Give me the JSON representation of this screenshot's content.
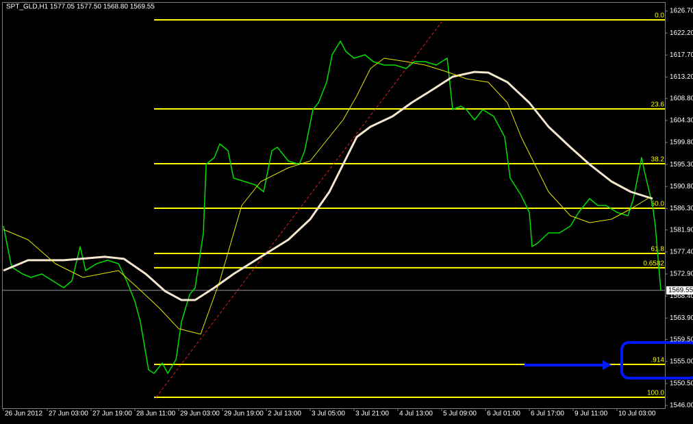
{
  "chart_data": {
    "type": "line",
    "title": "SPT_GLD,H1  1577.05 1577.50 1568.80 1569.55",
    "xlim": [
      -0.5,
      241.5
    ],
    "xticks": [
      {
        "value": 0,
        "label": "26 Jun 2012"
      },
      {
        "value": 16,
        "label": "27 Jun 03:00"
      },
      {
        "value": 32,
        "label": "27 Jun 19:00"
      },
      {
        "value": 48,
        "label": "28 Jun 11:00"
      },
      {
        "value": 64,
        "label": "29 Jun 03:00"
      },
      {
        "value": 80,
        "label": "29 Jun 19:00"
      },
      {
        "value": 96,
        "label": "2 Jul 13:00"
      },
      {
        "value": 112,
        "label": "3 Jul 05:00"
      },
      {
        "value": 128,
        "label": "3 Jul 21:00"
      },
      {
        "value": 144,
        "label": "4 Jul 13:00"
      },
      {
        "value": 160,
        "label": "5 Jul 09:00"
      },
      {
        "value": 176,
        "label": "6 Jul 01:00"
      },
      {
        "value": 192,
        "label": "6 Jul 17:00"
      },
      {
        "value": 208,
        "label": "9 Jul 11:00"
      },
      {
        "value": 224,
        "label": "10 Jul 03:00"
      }
    ],
    "ylim": [
      1545.44,
      1628.38
    ],
    "yticks": [
      {
        "value": 1626.7,
        "label": "1626.70"
      },
      {
        "value": 1622.2,
        "label": "1622.20"
      },
      {
        "value": 1617.7,
        "label": "1617.70"
      },
      {
        "value": 1613.2,
        "label": "1613.20"
      },
      {
        "value": 1608.8,
        "label": "1608.80"
      },
      {
        "value": 1604.3,
        "label": "1604.30"
      },
      {
        "value": 1599.8,
        "label": "1599.80"
      },
      {
        "value": 1595.3,
        "label": "1595.30"
      },
      {
        "value": 1590.8,
        "label": "1590.80"
      },
      {
        "value": 1586.3,
        "label": "1586.30"
      },
      {
        "value": 1581.9,
        "label": "1581.90"
      },
      {
        "value": 1577.4,
        "label": "1577.40"
      },
      {
        "value": 1572.9,
        "label": "1572.90"
      },
      {
        "value": 1568.4,
        "label": "1568.40"
      },
      {
        "value": 1563.9,
        "label": "1563.90"
      },
      {
        "value": 1559.5,
        "label": "1559.50"
      },
      {
        "value": 1555,
        "label": "1555.00"
      },
      {
        "value": 1550.5,
        "label": "1550.50"
      },
      {
        "value": 1546,
        "label": "1546.00"
      }
    ],
    "last_price": {
      "value": 1569.55,
      "label": "1569.55"
    },
    "fib_color": "#ffff00",
    "levels": [
      {
        "value": 1624.88,
        "label": "0.0"
      },
      {
        "value": 1606.67,
        "label": "23.6"
      },
      {
        "value": 1595.46,
        "label": "38.2"
      },
      {
        "value": 1586.35,
        "label": "50.0"
      },
      {
        "value": 1577.11,
        "label": "61.8"
      },
      {
        "value": 1574.17,
        "label": "0.6582"
      },
      {
        "value": 1554.41,
        "label": ".914"
      },
      {
        "value": 1547.69,
        "label": "100.0"
      }
    ],
    "series": [
      {
        "color": "#00e000",
        "width": 1.5,
        "x": [
          0,
          3,
          7,
          10,
          14,
          18,
          22,
          25,
          28,
          30,
          34,
          38,
          42,
          45,
          48,
          50,
          53,
          55,
          58,
          60,
          63,
          65,
          68,
          70,
          73,
          74,
          77,
          79,
          82,
          84,
          88,
          92,
          95,
          98,
          100,
          104,
          108,
          110,
          113,
          115,
          118,
          120,
          123,
          125,
          128,
          132,
          135,
          139,
          143,
          147,
          150,
          154,
          158,
          162,
          164,
          167,
          169,
          172,
          175,
          179,
          183,
          185,
          189,
          192,
          193,
          195,
          199,
          203,
          207,
          210,
          214,
          217,
          220,
          224,
          228,
          230,
          233,
          234,
          237,
          238,
          240
        ],
        "values": [
          1582.71,
          1574.3,
          1572.9,
          1572.2,
          1572.9,
          1571.5,
          1570.1,
          1571.5,
          1578.51,
          1573.6,
          1575.0,
          1575.71,
          1575.0,
          1571.5,
          1567.3,
          1563.1,
          1553.29,
          1552.59,
          1554.69,
          1552.59,
          1555.39,
          1563.1,
          1568.7,
          1570.1,
          1581.31,
          1595.32,
          1596.72,
          1599.52,
          1598.12,
          1592.52,
          1591.82,
          1591.12,
          1589.71,
          1598.12,
          1598.82,
          1596.02,
          1595.32,
          1598.12,
          1606.53,
          1607.93,
          1612.13,
          1617.73,
          1620.54,
          1618.43,
          1617.03,
          1617.73,
          1616.33,
          1615.63,
          1615.63,
          1614.93,
          1616.33,
          1616.33,
          1615.63,
          1617.03,
          1606.53,
          1607.23,
          1606.53,
          1604.42,
          1606.53,
          1605.13,
          1600.92,
          1592.52,
          1589.01,
          1585.51,
          1578.51,
          1579.21,
          1581.31,
          1581.31,
          1582.71,
          1585.51,
          1588.31,
          1586.91,
          1586.91,
          1585.51,
          1584.81,
          1588.31,
          1596.72,
          1593.92,
          1586.91,
          1582.71,
          1569.55
        ]
      },
      {
        "color": "#f5e6d0",
        "width": 3,
        "x": [
          0,
          9,
          22,
          37,
          44,
          52,
          59,
          65,
          70,
          77,
          84,
          94,
          104,
          112,
          119,
          124,
          129,
          134,
          142,
          149,
          157,
          164,
          172,
          177,
          184,
          192,
          199,
          207,
          214,
          222,
          229,
          237
        ],
        "values": [
          1573.6,
          1575.71,
          1575.71,
          1576.41,
          1575.99,
          1572.9,
          1569.4,
          1567.58,
          1567.58,
          1570.1,
          1572.9,
          1576.41,
          1579.91,
          1584.11,
          1589.71,
          1595.32,
          1600.92,
          1603.02,
          1605.13,
          1607.93,
          1610.73,
          1613.25,
          1614.23,
          1614.09,
          1612.13,
          1607.93,
          1603.02,
          1598.82,
          1595.32,
          1591.82,
          1589.71,
          1588.31
        ]
      },
      {
        "color": "#e8e800",
        "width": 1,
        "x": [
          0,
          9,
          19,
          29,
          42,
          49,
          57,
          64,
          72,
          79,
          87,
          94,
          104,
          112,
          119,
          124,
          129,
          134,
          139,
          147,
          154,
          162,
          169,
          177,
          184,
          189,
          194,
          199,
          207,
          214,
          222,
          229,
          236
        ],
        "values": [
          1582.01,
          1579.91,
          1575.0,
          1572.2,
          1573.6,
          1570.1,
          1565.9,
          1561.7,
          1560.58,
          1571.5,
          1586.91,
          1591.82,
          1594.62,
          1596.02,
          1600.92,
          1604.42,
          1609.33,
          1614.93,
          1617.03,
          1616.33,
          1615.63,
          1614.23,
          1612.83,
          1612.13,
          1607.93,
          1600.92,
          1595.32,
          1589.71,
          1584.81,
          1583.41,
          1584.11,
          1586.21,
          1588.59
        ]
      }
    ]
  }
}
